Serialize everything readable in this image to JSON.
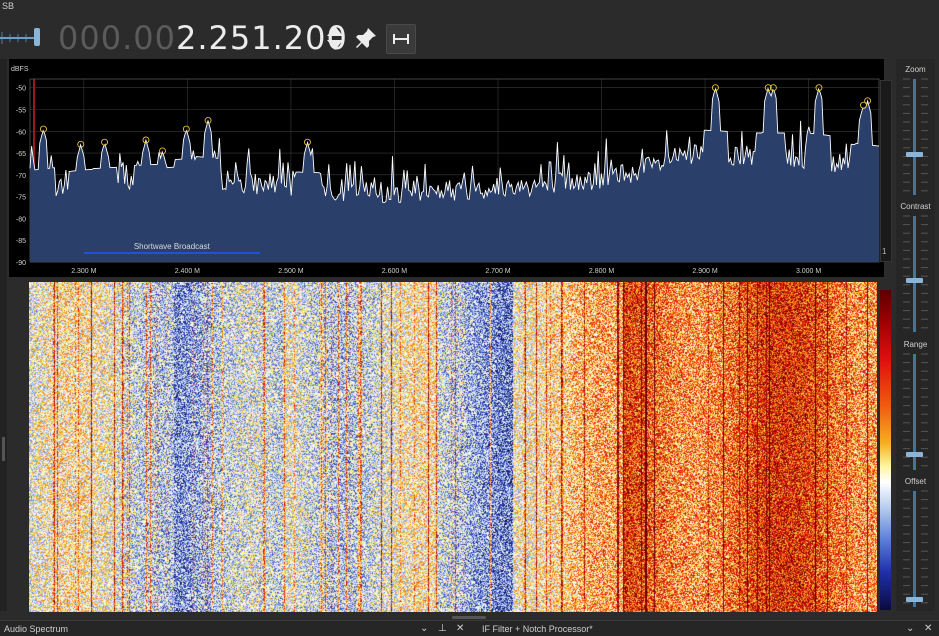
{
  "header": {
    "mode_label": "SB"
  },
  "frequency": {
    "dim_digits": "000.00",
    "bright_digits": "2.251.200"
  },
  "spectrum": {
    "y_unit": "dBFS",
    "y_ticks": [
      "-50",
      "-55",
      "-60",
      "-65",
      "-70",
      "-75",
      "-80",
      "-85",
      "-90"
    ],
    "x_ticks": [
      "2.300 M",
      "2.400 M",
      "2.500 M",
      "2.600 M",
      "2.700 M",
      "2.800 M",
      "2.900 M",
      "3.000 M"
    ],
    "band_label": "Shortwave Broadcast",
    "level_value": "1"
  },
  "chart_data": {
    "type": "area",
    "title": "",
    "xlabel": "",
    "ylabel": "dBFS",
    "xlim": [
      2.248,
      3.068
    ],
    "ylim": [
      -90,
      -48
    ],
    "grid": true,
    "x_unit": "MHz",
    "band": {
      "name": "Shortwave Broadcast",
      "start": 2.3,
      "end": 2.47
    },
    "peaks": [
      {
        "x": 2.261,
        "y": -59.5
      },
      {
        "x": 2.297,
        "y": -63.0
      },
      {
        "x": 2.32,
        "y": -62.5
      },
      {
        "x": 2.36,
        "y": -62.0
      },
      {
        "x": 2.376,
        "y": -64.5
      },
      {
        "x": 2.399,
        "y": -59.5
      },
      {
        "x": 2.42,
        "y": -57.5
      },
      {
        "x": 2.516,
        "y": -62.5
      },
      {
        "x": 2.91,
        "y": -50.0
      },
      {
        "x": 2.961,
        "y": -50.0
      },
      {
        "x": 2.966,
        "y": -50.0
      },
      {
        "x": 3.01,
        "y": -50.0
      },
      {
        "x": 3.053,
        "y": -54.0
      },
      {
        "x": 3.057,
        "y": -53.0
      }
    ],
    "envelope": [
      {
        "x": 2.25,
        "y": -74
      },
      {
        "x": 2.3,
        "y": -72
      },
      {
        "x": 2.4,
        "y": -70
      },
      {
        "x": 2.5,
        "y": -73
      },
      {
        "x": 2.6,
        "y": -74
      },
      {
        "x": 2.7,
        "y": -73
      },
      {
        "x": 2.8,
        "y": -71
      },
      {
        "x": 2.85,
        "y": -68
      },
      {
        "x": 2.9,
        "y": -65
      },
      {
        "x": 2.95,
        "y": -66
      },
      {
        "x": 3.0,
        "y": -66
      },
      {
        "x": 3.068,
        "y": -69
      }
    ]
  },
  "sidebar": {
    "zoom_label": "Zoom",
    "contrast_label": "Contrast",
    "range_label": "Range",
    "offset_label": "Offset"
  },
  "sliders": {
    "zoom": 0.65,
    "contrast": 0.55,
    "range": 0.86,
    "offset": 0.93
  },
  "bottom_panels": {
    "left_title": "Audio Spectrum",
    "right_title": "IF Filter + Notch Processor*"
  },
  "colors": {
    "spectrum_fill": "#2a3f6a",
    "spectrum_line": "#ffffff",
    "peak_marker": "#e8c040",
    "band_line": "#2255ff",
    "background": "#2b2b2b"
  }
}
